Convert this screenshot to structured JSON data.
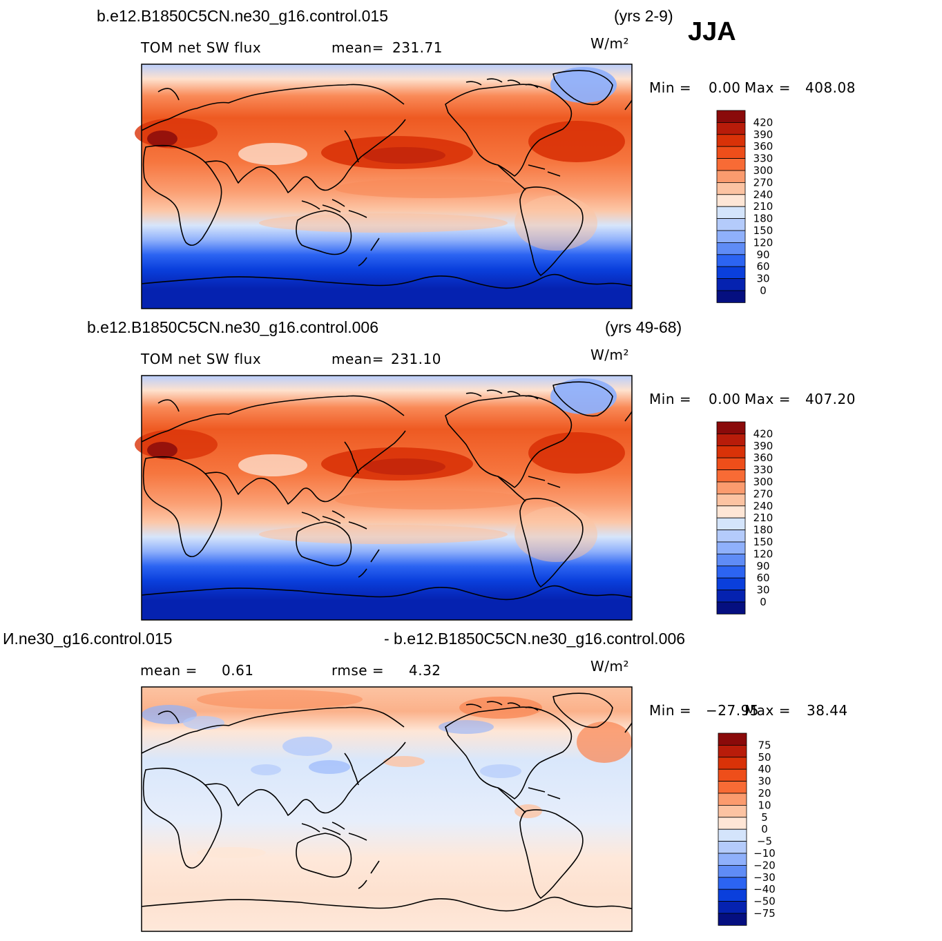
{
  "season": "JJA",
  "units": "W/m²",
  "panels": [
    {
      "case": "b.e12.B1850C5CN.ne30_g16.control.015",
      "years": "(yrs 2-9)",
      "variable": "TOM net SW flux",
      "stat_label": "mean=",
      "stat_value": "231.71",
      "min_label": "Min =",
      "min_value": "0.00",
      "max_label": "Max =",
      "max_value": "408.08"
    },
    {
      "case": "b.e12.B1850C5CN.ne30_g16.control.006",
      "years": "(yrs 49-68)",
      "variable": "TOM net SW flux",
      "stat_label": "mean=",
      "stat_value": "231.10",
      "min_label": "Min =",
      "min_value": "0.00",
      "max_label": "Max =",
      "max_value": "407.20"
    },
    {
      "case": "И.ne30_g16.control.015",
      "case_right": "- b.e12.B1850C5CN.ne30_g16.control.006",
      "mean_label": "mean =",
      "mean_value": "0.61",
      "rmse_label": "rmse =",
      "rmse_value": "4.32",
      "min_label": "Min =",
      "min_value": "−27.95",
      "max_label": "Max =",
      "max_value": "38.44"
    }
  ],
  "chart_data": [
    {
      "type": "heatmap",
      "title": "TOM net SW flux",
      "units": "W/m²",
      "colorbar_levels": [
        "420",
        "390",
        "360",
        "330",
        "300",
        "270",
        "240",
        "210",
        "180",
        "150",
        "120",
        "90",
        "60",
        "30",
        "0"
      ],
      "colorbar_colors": [
        "#8a0a0a",
        "#b81c0a",
        "#d93208",
        "#ee4e1a",
        "#f86b35",
        "#fb9b6e",
        "#fcc3a2",
        "#fee6d6",
        "#d4e4fb",
        "#b4cbfb",
        "#8fb0fb",
        "#5f8cf6",
        "#2c64f2",
        "#0a3fdc",
        "#0522b0",
        "#050f80"
      ],
      "min": 0.0,
      "max": 408.08,
      "mean": 231.71
    },
    {
      "type": "heatmap",
      "title": "TOM net SW flux",
      "units": "W/m²",
      "colorbar_levels": [
        "420",
        "390",
        "360",
        "330",
        "300",
        "270",
        "240",
        "210",
        "180",
        "150",
        "120",
        "90",
        "60",
        "30",
        "0"
      ],
      "colorbar_colors": [
        "#8a0a0a",
        "#b81c0a",
        "#d93208",
        "#ee4e1a",
        "#f86b35",
        "#fb9b6e",
        "#fcc3a2",
        "#fee6d6",
        "#d4e4fb",
        "#b4cbfb",
        "#8fb0fb",
        "#5f8cf6",
        "#2c64f2",
        "#0a3fdc",
        "#0522b0",
        "#050f80"
      ],
      "min": 0.0,
      "max": 407.2,
      "mean": 231.1
    },
    {
      "type": "heatmap",
      "units": "W/m²",
      "colorbar_levels": [
        "75",
        "50",
        "40",
        "30",
        "20",
        "10",
        "5",
        "0",
        "−5",
        "−10",
        "−20",
        "−30",
        "−40",
        "−50",
        "−75"
      ],
      "colorbar_colors": [
        "#8a0a0a",
        "#b81c0a",
        "#d93208",
        "#ee4e1a",
        "#f86b35",
        "#fb9b6e",
        "#fcc3a2",
        "#fee6d6",
        "#d4e4fb",
        "#b4cbfb",
        "#8fb0fb",
        "#5f8cf6",
        "#2c64f2",
        "#0a3fdc",
        "#0522b0",
        "#050f80"
      ],
      "min": -27.95,
      "max": 38.44,
      "mean": 0.61,
      "rmse": 4.32
    }
  ]
}
